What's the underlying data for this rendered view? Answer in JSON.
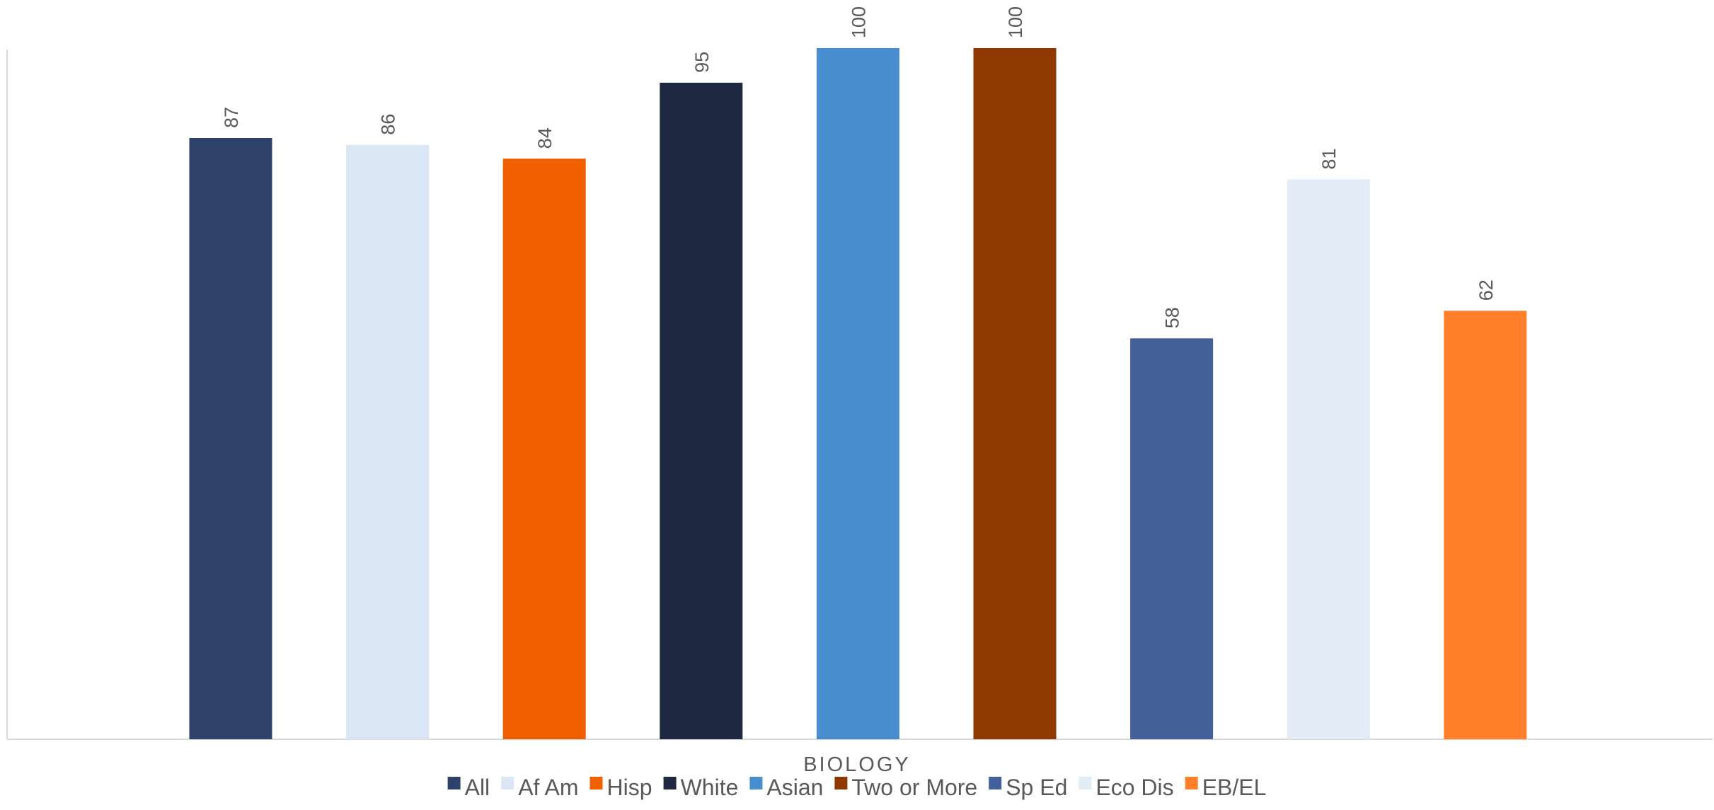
{
  "chart_data": {
    "type": "bar",
    "categories": [
      "BIOLOGY"
    ],
    "series": [
      {
        "name": "All",
        "values": [
          87
        ],
        "color": "#2E4169"
      },
      {
        "name": "Af Am",
        "values": [
          86
        ],
        "color": "#DAE6F3"
      },
      {
        "name": "Hisp",
        "values": [
          84
        ],
        "color": "#F06000"
      },
      {
        "name": "White",
        "values": [
          95
        ],
        "color": "#1E2841"
      },
      {
        "name": "Asian",
        "values": [
          100
        ],
        "color": "#488ECE"
      },
      {
        "name": "Two or More",
        "values": [
          100
        ],
        "color": "#8F3900"
      },
      {
        "name": "Sp Ed",
        "values": [
          58
        ],
        "color": "#44609A"
      },
      {
        "name": "Eco Dis",
        "values": [
          81
        ],
        "color": "#E2ECF6"
      },
      {
        "name": "EB/EL",
        "values": [
          62
        ],
        "color": "#FF7F2A"
      }
    ],
    "data_labels": [
      "87",
      "86",
      "84",
      "95",
      "100",
      "100",
      "58",
      "81",
      "62"
    ],
    "ylim": [
      0,
      100
    ],
    "grid": false,
    "legend_position": "bottom"
  }
}
